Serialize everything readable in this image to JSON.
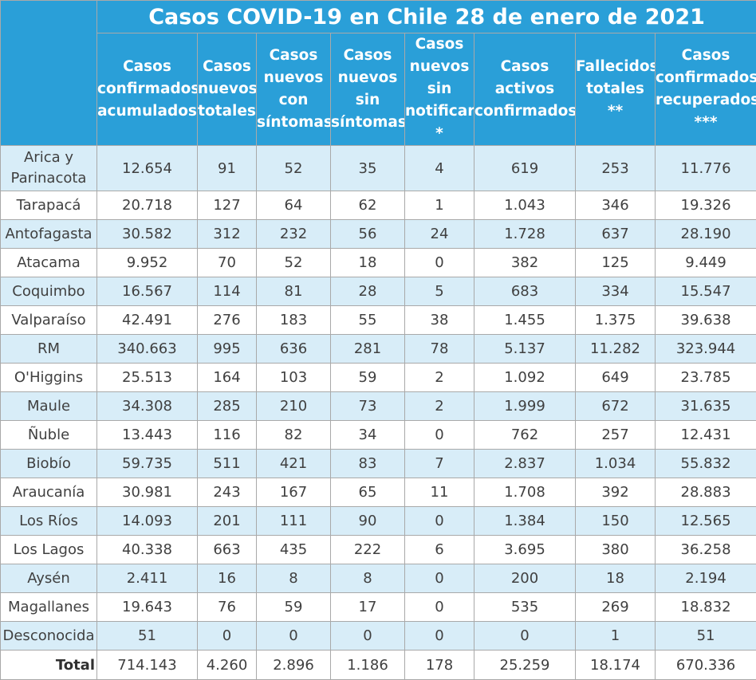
{
  "title": "Casos COVID-19 en Chile 28 de enero de 2021",
  "columns": [
    [
      "Casos",
      "confirmados",
      "acumulados"
    ],
    [
      "Casos",
      "nuevos",
      "totales"
    ],
    [
      "Casos",
      "nuevos",
      "con",
      "síntomas"
    ],
    [
      "Casos",
      "nuevos",
      "sin",
      "síntomas"
    ],
    [
      "Casos",
      "nuevos",
      "sin",
      "notificar",
      "*"
    ],
    [
      "Casos",
      "activos",
      "confirmados"
    ],
    [
      "Fallecidos",
      "totales",
      "**"
    ],
    [
      "Casos",
      "confirmados",
      "recuperados",
      "***"
    ]
  ],
  "rows": [
    {
      "region": "Arica y Parinacota",
      "values": [
        "12.654",
        "91",
        "52",
        "35",
        "4",
        "619",
        "253",
        "11.776"
      ]
    },
    {
      "region": "Tarapacá",
      "values": [
        "20.718",
        "127",
        "64",
        "62",
        "1",
        "1.043",
        "346",
        "19.326"
      ]
    },
    {
      "region": "Antofagasta",
      "values": [
        "30.582",
        "312",
        "232",
        "56",
        "24",
        "1.728",
        "637",
        "28.190"
      ]
    },
    {
      "region": "Atacama",
      "values": [
        "9.952",
        "70",
        "52",
        "18",
        "0",
        "382",
        "125",
        "9.449"
      ]
    },
    {
      "region": "Coquimbo",
      "values": [
        "16.567",
        "114",
        "81",
        "28",
        "5",
        "683",
        "334",
        "15.547"
      ]
    },
    {
      "region": "Valparaíso",
      "values": [
        "42.491",
        "276",
        "183",
        "55",
        "38",
        "1.455",
        "1.375",
        "39.638"
      ]
    },
    {
      "region": "RM",
      "values": [
        "340.663",
        "995",
        "636",
        "281",
        "78",
        "5.137",
        "11.282",
        "323.944"
      ]
    },
    {
      "region": "O'Higgins",
      "values": [
        "25.513",
        "164",
        "103",
        "59",
        "2",
        "1.092",
        "649",
        "23.785"
      ]
    },
    {
      "region": "Maule",
      "values": [
        "34.308",
        "285",
        "210",
        "73",
        "2",
        "1.999",
        "672",
        "31.635"
      ]
    },
    {
      "region": "Ñuble",
      "values": [
        "13.443",
        "116",
        "82",
        "34",
        "0",
        "762",
        "257",
        "12.431"
      ]
    },
    {
      "region": "Biobío",
      "values": [
        "59.735",
        "511",
        "421",
        "83",
        "7",
        "2.837",
        "1.034",
        "55.832"
      ]
    },
    {
      "region": "Araucanía",
      "values": [
        "30.981",
        "243",
        "167",
        "65",
        "11",
        "1.708",
        "392",
        "28.883"
      ]
    },
    {
      "region": "Los Ríos",
      "values": [
        "14.093",
        "201",
        "111",
        "90",
        "0",
        "1.384",
        "150",
        "12.565"
      ]
    },
    {
      "region": "Los Lagos",
      "values": [
        "40.338",
        "663",
        "435",
        "222",
        "6",
        "3.695",
        "380",
        "36.258"
      ]
    },
    {
      "region": "Aysén",
      "values": [
        "2.411",
        "16",
        "8",
        "8",
        "0",
        "200",
        "18",
        "2.194"
      ]
    },
    {
      "region": "Magallanes",
      "values": [
        "19.643",
        "76",
        "59",
        "17",
        "0",
        "535",
        "269",
        "18.832"
      ]
    },
    {
      "region": "Desconocida",
      "values": [
        "51",
        "0",
        "0",
        "0",
        "0",
        "0",
        "1",
        "51"
      ]
    }
  ],
  "total": {
    "label": "Total",
    "values": [
      "714.143",
      "4.260",
      "2.896",
      "1.186",
      "178",
      "25.259",
      "18.174",
      "670.336"
    ]
  },
  "colors": {
    "header": "#2a9fd8",
    "row_alt": "#d8edf8",
    "border": "#a9a9a9"
  }
}
